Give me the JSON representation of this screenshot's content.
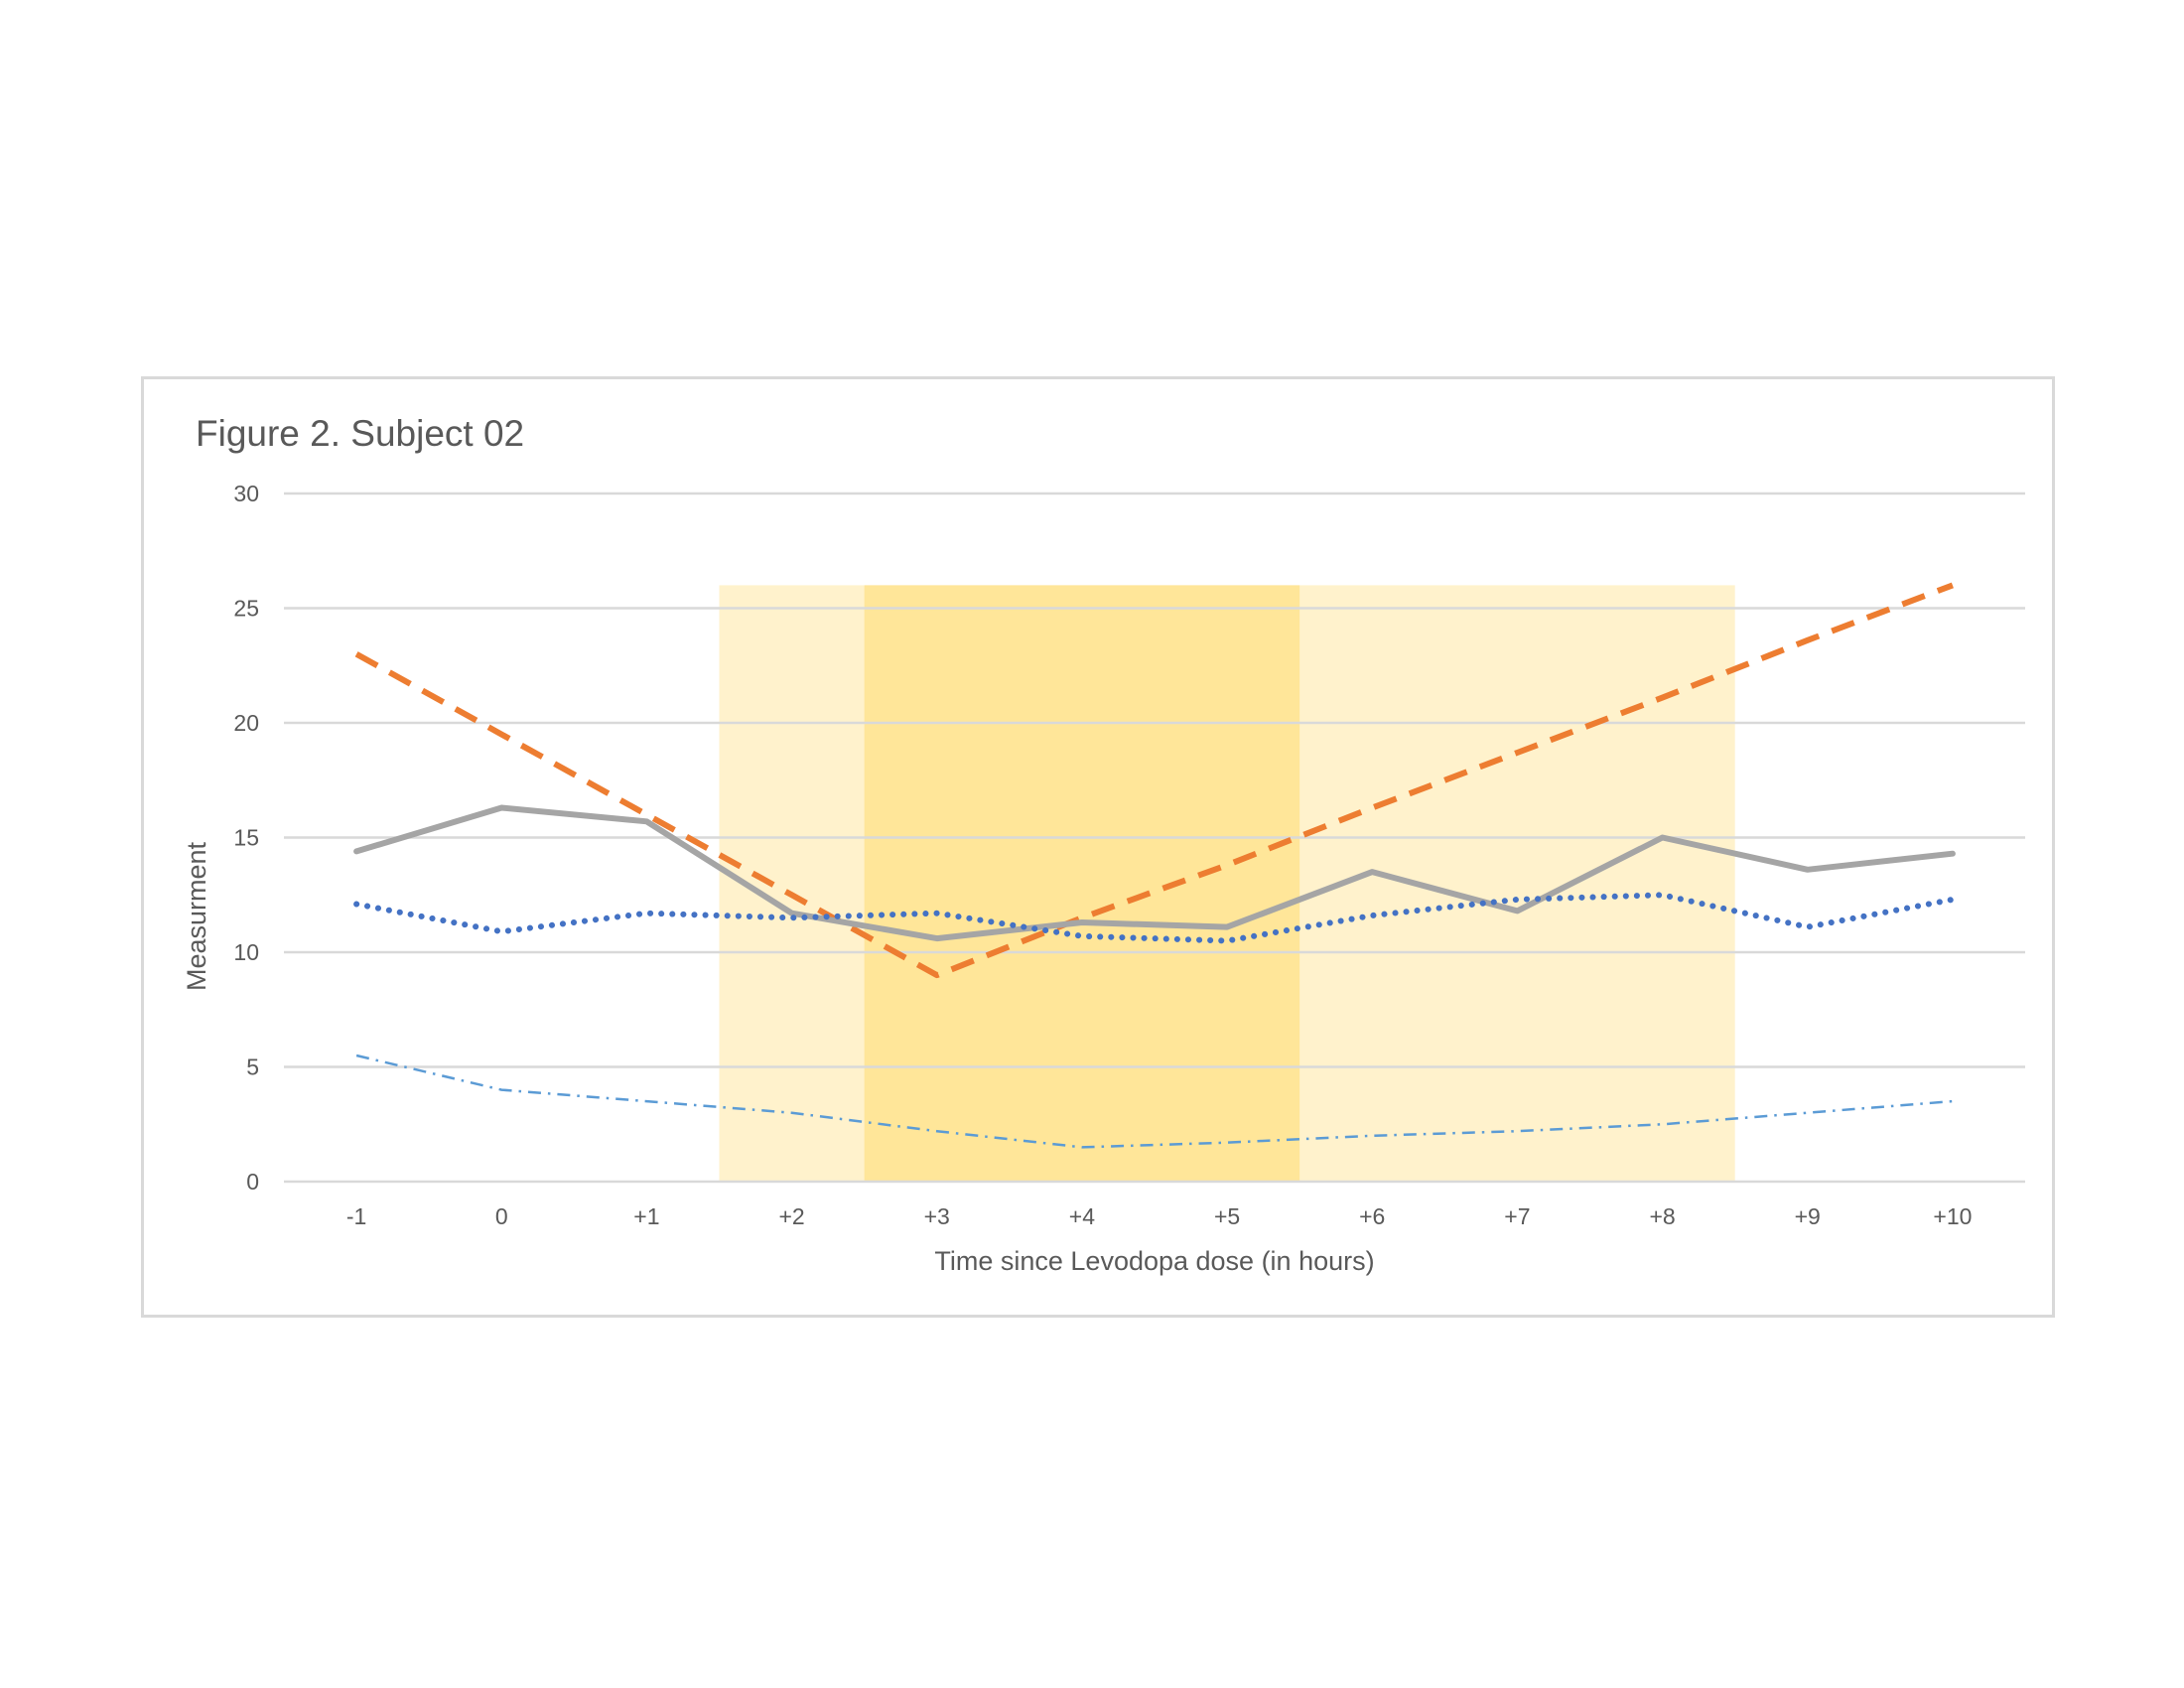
{
  "chart_data": {
    "type": "line",
    "title": "Figure 2. Subject 02",
    "xlabel": "Time since Levodopa dose (in hours)",
    "ylabel": "Measurment",
    "categories": [
      "-1",
      "0",
      "+1",
      "+2",
      "+3",
      "+4",
      "+5",
      "+6",
      "+7",
      "+8",
      "+9",
      "+10"
    ],
    "ylim": [
      0,
      30
    ],
    "yticks": [
      "0",
      "5",
      "10",
      "15",
      "20",
      "25",
      "30"
    ],
    "grid": true,
    "legend": "none",
    "shaded_regions": [
      {
        "from": "+1",
        "to": "+8",
        "side_from": "right",
        "side_to": "right",
        "y_top": 26,
        "color": "#fff2cc"
      },
      {
        "from": "+2",
        "to": "+5",
        "side_from": "right",
        "side_to": "right",
        "y_top": 26,
        "color": "#ffe699"
      }
    ],
    "series": [
      {
        "values": [
          23,
          19.5,
          16,
          12.5,
          9,
          11.5,
          13.8,
          16.3,
          18.7,
          21.1,
          23.6,
          26
        ],
        "color": "#ed7d31",
        "line_style": "dashed"
      },
      {
        "values": [
          14.4,
          16.3,
          15.7,
          11.7,
          10.6,
          11.3,
          11.1,
          13.5,
          11.8,
          15.0,
          13.6,
          14.3
        ],
        "color": "#a5a5a5",
        "line_style": "solid"
      },
      {
        "values": [
          12.1,
          10.9,
          11.7,
          11.5,
          11.7,
          10.7,
          10.5,
          11.6,
          12.3,
          12.5,
          11.1,
          12.3
        ],
        "color": "#4472c4",
        "line_style": "dotted"
      },
      {
        "values": [
          5.5,
          4.0,
          3.5,
          3.0,
          2.2,
          1.5,
          1.7,
          2.0,
          2.2,
          2.5,
          3.0,
          3.5
        ],
        "color": "#5b9bd5",
        "line_style": "dash-dot"
      }
    ]
  }
}
